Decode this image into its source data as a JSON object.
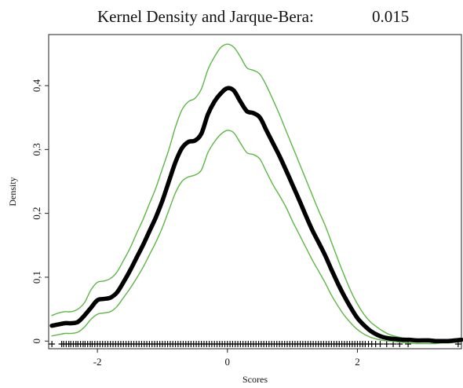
{
  "chart_data": {
    "type": "line",
    "title": "Kernel Density and Jarque-Bera:",
    "title_value": "0.015",
    "xlabel": "Scores",
    "ylabel": "Density",
    "xlim": [
      -2.75,
      3.6
    ],
    "ylim": [
      -0.012,
      0.48
    ],
    "x_ticks": [
      -2,
      0,
      2
    ],
    "x_tick_labels": [
      "-2",
      "0",
      "2"
    ],
    "y_ticks": [
      0,
      0.1,
      0.2,
      0.3,
      0.4
    ],
    "y_tick_labels": [
      "0",
      "0,1",
      "0,2",
      "0,3",
      "0,4"
    ],
    "grid": false,
    "colors": {
      "density": "#000000",
      "bands": "#5cb843",
      "rug": "#000000"
    },
    "series": [
      {
        "role": "density",
        "x": [
          -2.7,
          -2.6,
          -2.5,
          -2.4,
          -2.3,
          -2.2,
          -2.1,
          -2.0,
          -1.9,
          -1.8,
          -1.7,
          -1.6,
          -1.5,
          -1.4,
          -1.3,
          -1.2,
          -1.1,
          -1.0,
          -0.9,
          -0.8,
          -0.7,
          -0.6,
          -0.5,
          -0.4,
          -0.3,
          -0.2,
          -0.1,
          0.0,
          0.1,
          0.2,
          0.3,
          0.4,
          0.5,
          0.6,
          0.7,
          0.8,
          0.9,
          1.0,
          1.1,
          1.2,
          1.3,
          1.4,
          1.5,
          1.6,
          1.7,
          1.8,
          1.9,
          2.0,
          2.1,
          2.2,
          2.3,
          2.4,
          2.5,
          2.6,
          2.7,
          2.8,
          2.9,
          3.0,
          3.1,
          3.2,
          3.3,
          3.4,
          3.5,
          3.6
        ],
        "values": [
          0.024,
          0.026,
          0.028,
          0.028,
          0.03,
          0.04,
          0.052,
          0.064,
          0.066,
          0.068,
          0.076,
          0.092,
          0.11,
          0.13,
          0.15,
          0.172,
          0.194,
          0.22,
          0.25,
          0.28,
          0.302,
          0.312,
          0.314,
          0.325,
          0.355,
          0.375,
          0.388,
          0.396,
          0.392,
          0.375,
          0.36,
          0.357,
          0.35,
          0.33,
          0.31,
          0.29,
          0.268,
          0.245,
          0.222,
          0.198,
          0.175,
          0.155,
          0.135,
          0.112,
          0.09,
          0.07,
          0.052,
          0.036,
          0.025,
          0.016,
          0.01,
          0.006,
          0.004,
          0.003,
          0.002,
          0.002,
          0.001,
          0.001,
          0.001,
          0.0,
          0.0,
          0.0,
          0.001,
          0.002
        ]
      },
      {
        "role": "upper-band",
        "x": [
          -2.7,
          -2.6,
          -2.5,
          -2.4,
          -2.3,
          -2.2,
          -2.1,
          -2.0,
          -1.9,
          -1.8,
          -1.7,
          -1.6,
          -1.5,
          -1.4,
          -1.3,
          -1.2,
          -1.1,
          -1.0,
          -0.9,
          -0.8,
          -0.7,
          -0.6,
          -0.5,
          -0.4,
          -0.3,
          -0.2,
          -0.1,
          0.0,
          0.1,
          0.2,
          0.3,
          0.4,
          0.5,
          0.6,
          0.7,
          0.8,
          0.9,
          1.0,
          1.1,
          1.2,
          1.3,
          1.4,
          1.5,
          1.6,
          1.7,
          1.8,
          1.9,
          2.0,
          2.1,
          2.2,
          2.3,
          2.4,
          2.5,
          2.6,
          2.7,
          2.8,
          2.9,
          3.0,
          3.1,
          3.2,
          3.3,
          3.4,
          3.5,
          3.6
        ],
        "values": [
          0.04,
          0.044,
          0.046,
          0.046,
          0.05,
          0.06,
          0.08,
          0.092,
          0.094,
          0.098,
          0.108,
          0.126,
          0.145,
          0.168,
          0.19,
          0.215,
          0.24,
          0.27,
          0.3,
          0.335,
          0.362,
          0.375,
          0.38,
          0.395,
          0.425,
          0.445,
          0.46,
          0.465,
          0.46,
          0.445,
          0.428,
          0.424,
          0.418,
          0.4,
          0.378,
          0.355,
          0.33,
          0.305,
          0.28,
          0.255,
          0.23,
          0.205,
          0.182,
          0.155,
          0.128,
          0.102,
          0.078,
          0.058,
          0.042,
          0.03,
          0.022,
          0.015,
          0.01,
          0.007,
          0.005,
          0.004,
          0.003,
          0.003,
          0.002,
          0.002,
          0.002,
          0.002,
          0.003,
          0.005
        ]
      },
      {
        "role": "lower-band",
        "x": [
          -2.7,
          -2.6,
          -2.5,
          -2.4,
          -2.3,
          -2.2,
          -2.1,
          -2.0,
          -1.9,
          -1.8,
          -1.7,
          -1.6,
          -1.5,
          -1.4,
          -1.3,
          -1.2,
          -1.1,
          -1.0,
          -0.9,
          -0.8,
          -0.7,
          -0.6,
          -0.5,
          -0.4,
          -0.3,
          -0.2,
          -0.1,
          0.0,
          0.1,
          0.2,
          0.3,
          0.4,
          0.5,
          0.6,
          0.7,
          0.8,
          0.9,
          1.0,
          1.1,
          1.2,
          1.3,
          1.4,
          1.5,
          1.6,
          1.7,
          1.8,
          1.9,
          2.0,
          2.1,
          2.2,
          2.3,
          2.4,
          2.5,
          2.6,
          2.7,
          2.8,
          2.9,
          3.0,
          3.1,
          3.2,
          3.3,
          3.4,
          3.5,
          3.6
        ],
        "values": [
          0.008,
          0.01,
          0.012,
          0.012,
          0.014,
          0.022,
          0.034,
          0.042,
          0.044,
          0.046,
          0.054,
          0.068,
          0.082,
          0.098,
          0.115,
          0.135,
          0.155,
          0.178,
          0.205,
          0.232,
          0.25,
          0.257,
          0.26,
          0.268,
          0.295,
          0.312,
          0.324,
          0.33,
          0.326,
          0.31,
          0.295,
          0.292,
          0.285,
          0.265,
          0.245,
          0.228,
          0.21,
          0.188,
          0.168,
          0.148,
          0.128,
          0.11,
          0.092,
          0.072,
          0.055,
          0.04,
          0.028,
          0.018,
          0.011,
          0.006,
          0.003,
          0.001,
          0.0,
          -0.001,
          -0.002,
          -0.003,
          -0.004,
          -0.004,
          -0.004,
          -0.004,
          -0.003,
          -0.003,
          -0.002,
          -0.001
        ]
      }
    ],
    "rug": {
      "marker": "+",
      "x": [
        -2.7,
        -2.55,
        -2.52,
        -2.48,
        -2.44,
        -2.41,
        -2.37,
        -2.33,
        -2.3,
        -2.26,
        -2.22,
        -2.19,
        -2.15,
        -2.11,
        -2.08,
        -2.04,
        -2.0,
        -1.96,
        -1.92,
        -1.88,
        -1.84,
        -1.8,
        -1.76,
        -1.72,
        -1.68,
        -1.64,
        -1.6,
        -1.56,
        -1.52,
        -1.48,
        -1.44,
        -1.4,
        -1.36,
        -1.32,
        -1.28,
        -1.24,
        -1.2,
        -1.16,
        -1.12,
        -1.08,
        -1.04,
        -1.0,
        -0.96,
        -0.92,
        -0.88,
        -0.84,
        -0.8,
        -0.76,
        -0.72,
        -0.68,
        -0.64,
        -0.6,
        -0.56,
        -0.52,
        -0.48,
        -0.44,
        -0.4,
        -0.36,
        -0.32,
        -0.28,
        -0.24,
        -0.2,
        -0.16,
        -0.12,
        -0.08,
        -0.04,
        0.0,
        0.04,
        0.08,
        0.12,
        0.16,
        0.2,
        0.24,
        0.28,
        0.32,
        0.36,
        0.4,
        0.44,
        0.48,
        0.52,
        0.56,
        0.6,
        0.64,
        0.68,
        0.72,
        0.76,
        0.8,
        0.84,
        0.88,
        0.92,
        0.96,
        1.0,
        1.04,
        1.08,
        1.12,
        1.16,
        1.2,
        1.24,
        1.28,
        1.32,
        1.36,
        1.4,
        1.44,
        1.48,
        1.52,
        1.56,
        1.6,
        1.64,
        1.68,
        1.72,
        1.76,
        1.8,
        1.84,
        1.88,
        1.92,
        1.96,
        2.0,
        2.04,
        2.08,
        2.12,
        2.17,
        2.22,
        2.28,
        2.35,
        2.45,
        2.55,
        2.65,
        2.78,
        3.55
      ]
    }
  }
}
